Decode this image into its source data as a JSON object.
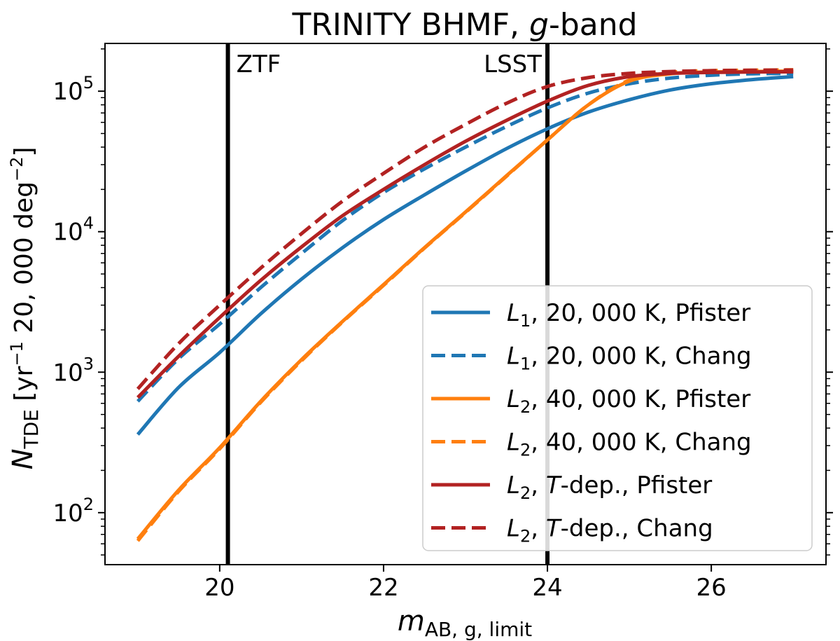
{
  "chart_data": {
    "type": "line",
    "title_main": "TRINITY BHMF, ",
    "title_italic": "g",
    "title_end": "-band",
    "xlabel": {
      "base": "m",
      "sub": "AB, g, limit"
    },
    "ylabel": {
      "base": "N",
      "sub": "TDE",
      "unit": " [yr",
      "exp1": "−1",
      "mid": " 20, 000 deg",
      "exp2": "−2",
      "close": "]"
    },
    "xlim": [
      18.6,
      27.4
    ],
    "ylim_log10": [
      1.63,
      5.34
    ],
    "xticks": [
      {
        "value": 20,
        "label": "20"
      },
      {
        "value": 22,
        "label": "22"
      },
      {
        "value": 24,
        "label": "24"
      },
      {
        "value": 26,
        "label": "26"
      }
    ],
    "yticks": [
      {
        "exp": 2,
        "base": "10",
        "sup": "2"
      },
      {
        "exp": 3,
        "base": "10",
        "sup": "3"
      },
      {
        "exp": 4,
        "base": "10",
        "sup": "4"
      },
      {
        "exp": 5,
        "base": "10",
        "sup": "5"
      }
    ],
    "vlines": [
      {
        "x": 20.1,
        "label": "ZTF",
        "anchor": "start"
      },
      {
        "x": 24.0,
        "label": "LSST",
        "anchor": "end"
      }
    ],
    "x": [
      19.0,
      19.5,
      20.0,
      20.5,
      21.0,
      21.5,
      22.0,
      22.5,
      23.0,
      23.5,
      24.0,
      24.5,
      25.0,
      25.5,
      26.0,
      26.5,
      27.0
    ],
    "series": [
      {
        "name": "L1, 20,000 K, Pfister",
        "legend": {
          "sym": "L",
          "sub": "1",
          "rest": ", 20, 000 K, Pfister"
        },
        "color": "#1f77b4",
        "dash": "solid",
        "values": [
          360,
          780,
          1380,
          2600,
          4600,
          7700,
          12200,
          18300,
          27000,
          39000,
          54000,
          71000,
          87000,
          102000,
          113000,
          121000,
          127000
        ]
      },
      {
        "name": "L1, 20,000 K, Chang",
        "legend": {
          "sym": "L",
          "sub": "1",
          "rest": ", 20, 000 K, Chang"
        },
        "color": "#1f77b4",
        "dash": "dashed",
        "values": [
          620,
          1250,
          2200,
          4000,
          7000,
          12000,
          19000,
          28000,
          40000,
          56000,
          76000,
          97000,
          113000,
          124000,
          130000,
          133000,
          134000
        ]
      },
      {
        "name": "L2, 40,000 K, Pfister",
        "legend": {
          "sym": "L",
          "sub": "2",
          "rest": ", 40, 000 K, Pfister"
        },
        "color": "#ff7f0e",
        "dash": "solid",
        "values": [
          65,
          145,
          290,
          620,
          1230,
          2300,
          4200,
          7700,
          13800,
          25000,
          45000,
          80000,
          118000,
          133000,
          137000,
          138000,
          139000
        ]
      },
      {
        "name": "L2, 40,000 K, Chang",
        "legend": {
          "sym": "L",
          "sub": "2",
          "rest": ", 40, 000 K, Chang"
        },
        "color": "#ff7f0e",
        "dash": "dashed",
        "values": [
          63,
          142,
          285,
          610,
          1210,
          2280,
          4150,
          7650,
          13700,
          24800,
          45000,
          80000,
          120000,
          136000,
          140000,
          141000,
          142000
        ]
      },
      {
        "name": "L2, T-dep., Pfister",
        "legend": {
          "sym": "L",
          "sub": "2",
          "rest1": ", ",
          "italic": "T",
          "rest2": "-dep., Pfister"
        },
        "color": "#b22222",
        "dash": "solid",
        "values": [
          660,
          1300,
          2450,
          4500,
          7800,
          13000,
          20000,
          30000,
          44000,
          62000,
          85000,
          110000,
          127000,
          134000,
          136000,
          137000,
          137500
        ]
      },
      {
        "name": "L2, T-dep., Chang",
        "legend": {
          "sym": "L",
          "sub": "2",
          "rest1": ", ",
          "italic": "T",
          "rest2": "-dep., Chang"
        },
        "color": "#b22222",
        "dash": "dashed",
        "values": [
          760,
          1600,
          3000,
          5500,
          9700,
          16500,
          26000,
          40000,
          58000,
          82000,
          108000,
          125000,
          134000,
          138000,
          140000,
          141000,
          141500
        ]
      }
    ],
    "legend_position": "lower-right"
  }
}
